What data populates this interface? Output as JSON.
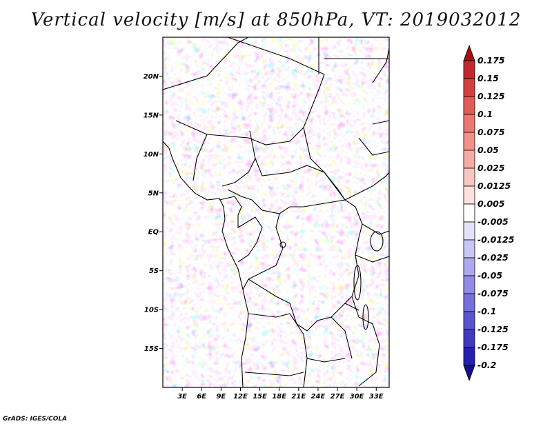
{
  "title": "Vertical velocity [m/s] at 850hPa, VT: 2019032012",
  "credit": "GrADS: IGES/COLA",
  "map": {
    "lon_range": [
      0,
      35
    ],
    "lat_range": [
      -20,
      25
    ],
    "lat_labels": [
      "20N",
      "15N",
      "10N",
      "5N",
      "EQ",
      "5S",
      "10S",
      "15S"
    ],
    "lat_values": [
      20,
      15,
      10,
      5,
      0,
      -5,
      -10,
      -15
    ],
    "lon_labels": [
      "3E",
      "6E",
      "9E",
      "12E",
      "15E",
      "18E",
      "21E",
      "24E",
      "27E",
      "30E",
      "33E"
    ],
    "lon_values": [
      3,
      6,
      9,
      12,
      15,
      18,
      21,
      24,
      27,
      30,
      33
    ]
  },
  "colorbar": {
    "labels": [
      "0.175",
      "0.15",
      "0.125",
      "0.1",
      "0.075",
      "0.05",
      "0.025",
      "0.0125",
      "0.005",
      "-0.005",
      "-0.0125",
      "-0.025",
      "-0.05",
      "-0.075",
      "-0.1",
      "-0.125",
      "-0.175",
      "-0.2"
    ],
    "colors": [
      "#a50f15",
      "#c0292e",
      "#d2403f",
      "#e15b57",
      "#eb7770",
      "#f1918a",
      "#f6aba5",
      "#f9c7c2",
      "#fce2df",
      "#ffffff",
      "#e4e2fb",
      "#c9c5f5",
      "#ada8ef",
      "#918ae6",
      "#7670dc",
      "#5b54cf",
      "#4139c0",
      "#2620ae",
      "#140f8f"
    ]
  }
}
